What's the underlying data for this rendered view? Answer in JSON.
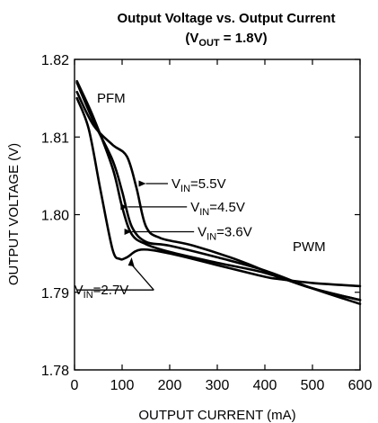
{
  "chart_data": {
    "type": "line",
    "title": "Output Voltage vs. Output Current",
    "subtitle": {
      "prefix": "(V",
      "sub": "OUT",
      "suffix": " = 1.8V)"
    },
    "xlabel": "OUTPUT CURRENT (mA)",
    "ylabel": "OUTPUT VOLTAGE (V)",
    "xlim": [
      0,
      600
    ],
    "ylim": [
      1.78,
      1.82
    ],
    "x_ticks": [
      "0",
      "100",
      "200",
      "300",
      "400",
      "500",
      "600"
    ],
    "y_ticks": [
      "1.78",
      "1.79",
      "1.80",
      "1.81",
      "1.82"
    ],
    "grid": false,
    "region_labels": [
      "PFM",
      "PWM"
    ],
    "series": [
      {
        "name": {
          "prefix": "V",
          "sub": "IN",
          "suffix": "=5.5V"
        },
        "x": [
          5,
          40,
          80,
          110,
          130,
          150,
          180,
          250,
          350,
          430,
          500,
          600
        ],
        "y": [
          1.8158,
          1.8115,
          1.809,
          1.8075,
          1.8035,
          1.7985,
          1.797,
          1.796,
          1.794,
          1.792,
          1.7905,
          1.789
        ]
      },
      {
        "name": {
          "prefix": "V",
          "sub": "IN",
          "suffix": "=4.5V"
        },
        "x": [
          5,
          40,
          80,
          100,
          120,
          150,
          200,
          300,
          400,
          500,
          600
        ],
        "y": [
          1.817,
          1.812,
          1.807,
          1.803,
          1.7985,
          1.7965,
          1.796,
          1.7945,
          1.7928,
          1.7905,
          1.7885
        ]
      },
      {
        "name": {
          "prefix": "V",
          "sub": "IN",
          "suffix": "=3.6V"
        },
        "x": [
          5,
          40,
          80,
          100,
          120,
          150,
          200,
          300,
          400,
          500,
          600
        ],
        "y": [
          1.8172,
          1.8125,
          1.806,
          1.801,
          1.7975,
          1.7962,
          1.7952,
          1.7938,
          1.7925,
          1.7905,
          1.789
        ]
      },
      {
        "name": {
          "prefix": "V",
          "sub": "IN",
          "suffix": "=2.7V"
        },
        "x": [
          5,
          30,
          55,
          80,
          95,
          110,
          140,
          200,
          300,
          400,
          430,
          500,
          600
        ],
        "y": [
          1.815,
          1.811,
          1.803,
          1.7955,
          1.7943,
          1.7945,
          1.7955,
          1.795,
          1.7935,
          1.792,
          1.7917,
          1.7912,
          1.7908
        ]
      }
    ],
    "annotations": [
      {
        "series": 0,
        "prefix": "V",
        "sub": "IN",
        "suffix": "=5.5V",
        "pointer": [
          150,
          1.804
        ],
        "label_at": [
          200,
          1.804
        ],
        "anchor": "start"
      },
      {
        "series": 1,
        "prefix": "V",
        "sub": "IN",
        "suffix": "=4.5V",
        "pointer": [
          112,
          1.801
        ],
        "label_at": [
          240,
          1.801
        ],
        "anchor": "start"
      },
      {
        "series": 2,
        "prefix": "V",
        "sub": "IN",
        "suffix": "=3.6V",
        "pointer": [
          120,
          1.7978
        ],
        "label_at": [
          255,
          1.7978
        ],
        "anchor": "start"
      },
      {
        "series": 3,
        "prefix": "V",
        "sub": "IN",
        "suffix": "=2.7V",
        "pointer": [
          110,
          1.7903
        ],
        "label_at": [
          110,
          1.7903
        ],
        "anchor": "end"
      }
    ]
  }
}
